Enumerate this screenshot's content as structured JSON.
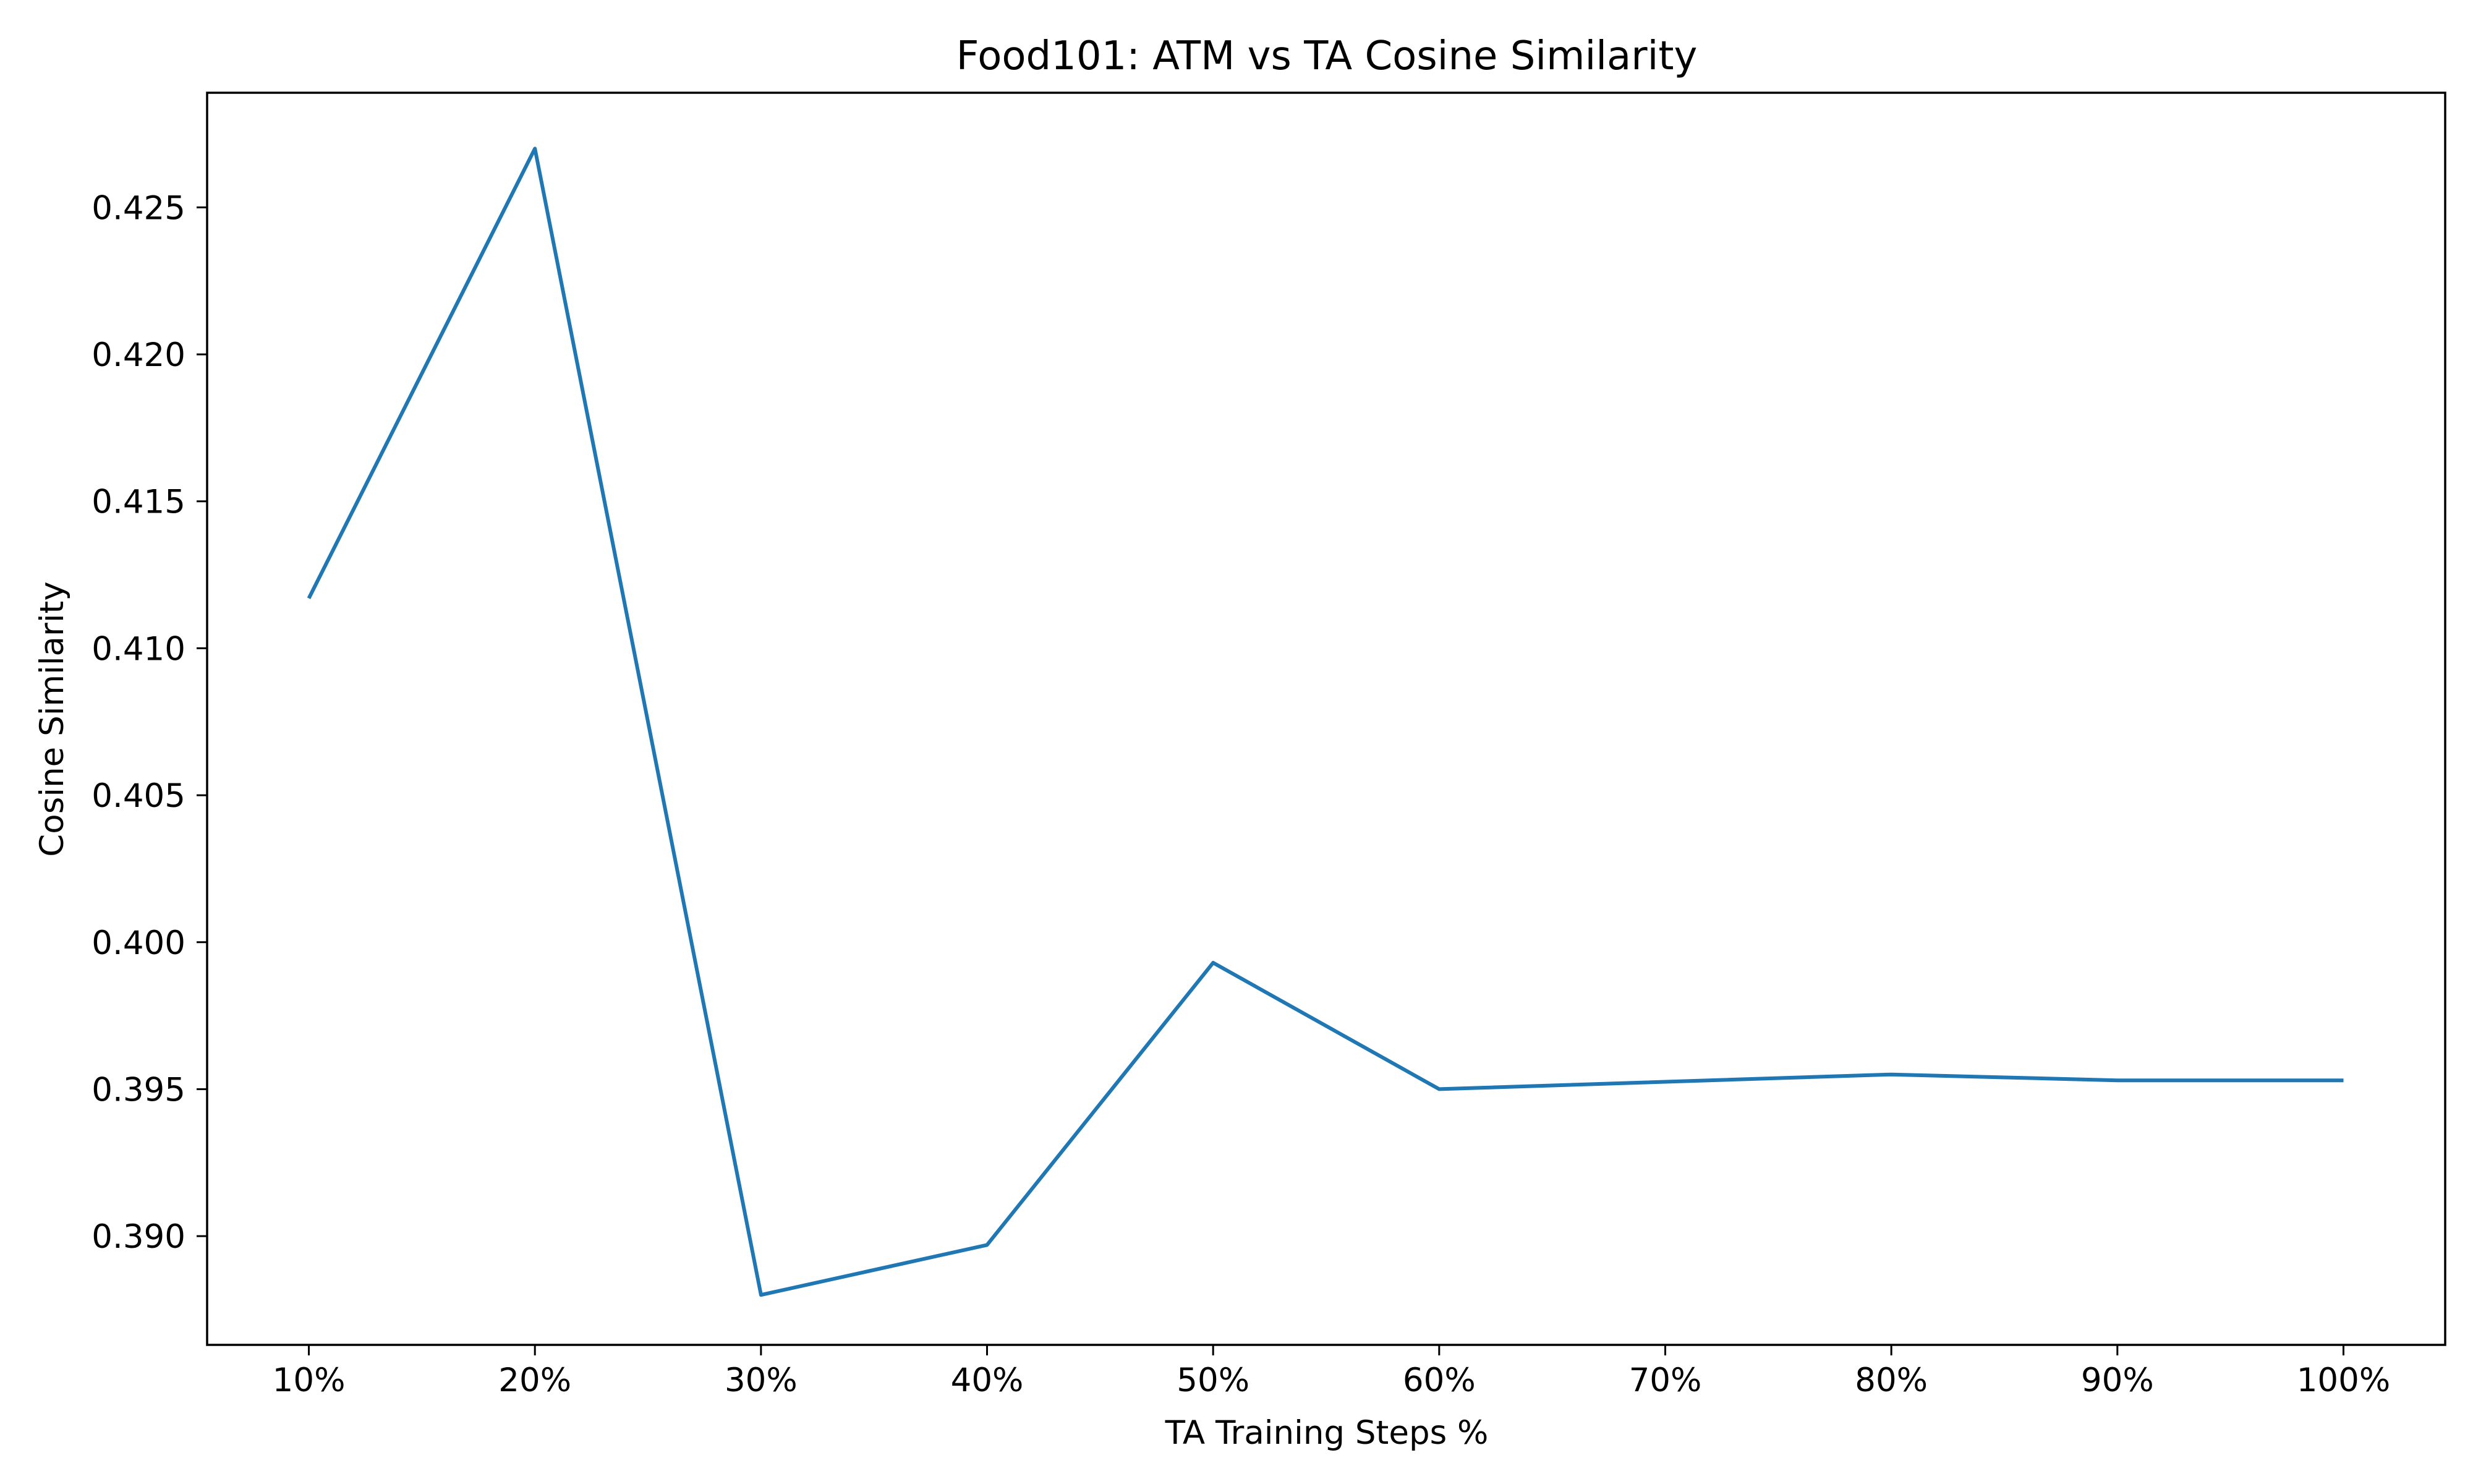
{
  "chart_data": {
    "type": "line",
    "title": "Food101: ATM vs TA Cosine Similarity",
    "xlabel": "TA Training Steps %",
    "ylabel": "Cosine Similarity",
    "x_tick_labels": [
      "10%",
      "20%",
      "30%",
      "40%",
      "50%",
      "60%",
      "70%",
      "80%",
      "90%",
      "100%"
    ],
    "x": [
      10,
      20,
      30,
      40,
      50,
      60,
      80,
      90,
      100
    ],
    "series": [
      {
        "values": [
          0.4117,
          0.427,
          0.388,
          0.3897,
          0.3993,
          0.395,
          0.3955,
          0.3953,
          0.3953
        ]
      }
    ],
    "y_ticks": [
      0.39,
      0.395,
      0.4,
      0.405,
      0.41,
      0.415,
      0.42,
      0.425
    ],
    "y_tick_labels": [
      "0.390",
      "0.395",
      "0.400",
      "0.405",
      "0.410",
      "0.415",
      "0.420",
      "0.425"
    ],
    "xlim": [
      5.5,
      104.5
    ],
    "ylim": [
      0.3863,
      0.4289
    ],
    "grid": false,
    "line_color": "#1f77b4"
  }
}
